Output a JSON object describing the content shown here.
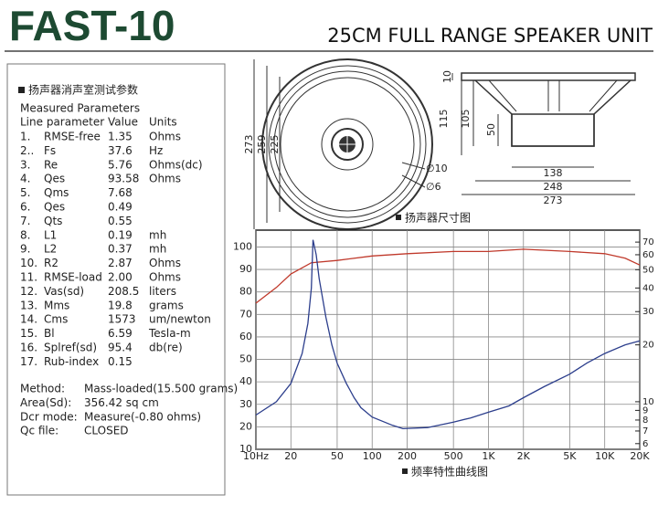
{
  "header": {
    "title": "FAST-10",
    "subtitle": "25CM FULL RANGE SPEAKER UNIT"
  },
  "params": {
    "heading": "扬声器消声室测试参数",
    "subheading": "Measured Parameters",
    "columns": [
      "Line parameter",
      "Value",
      "Units"
    ],
    "rows": [
      [
        "1.",
        "RMSE-free",
        "1.35",
        "Ohms"
      ],
      [
        "2..",
        "Fs",
        "37.6",
        "Hz"
      ],
      [
        "3.",
        "Re",
        "5.76",
        "Ohms(dc)"
      ],
      [
        "4.",
        "Qes",
        "93.58",
        "Ohms"
      ],
      [
        "5.",
        "Qms",
        "7.68",
        ""
      ],
      [
        "6.",
        "Qes",
        "0.49",
        ""
      ],
      [
        "7.",
        "Qts",
        "0.55",
        ""
      ],
      [
        "8.",
        "L1",
        "0.19",
        "mh"
      ],
      [
        "9.",
        "L2",
        "0.37",
        "mh"
      ],
      [
        "10.",
        "R2",
        "2.87",
        "Ohms"
      ],
      [
        "11.",
        "RMSE-load",
        "2.00",
        "Ohms"
      ],
      [
        "12.",
        "Vas(sd)",
        "208.5",
        "liters"
      ],
      [
        "13.",
        "Mms",
        "19.8",
        "grams"
      ],
      [
        "14.",
        "Cms",
        "1573",
        "um/newton"
      ],
      [
        "15.",
        "Bl",
        "6.59",
        "Tesla-m"
      ],
      [
        "16.",
        "Splref(sd)",
        "95.4",
        "db(re)"
      ],
      [
        "17.",
        "Rub-index",
        "0.15",
        ""
      ]
    ],
    "notes": [
      [
        "Method:",
        "Mass-loaded(15.500 grams)"
      ],
      [
        "Area(Sd):",
        "356.42 sq cm"
      ],
      [
        "Dcr mode:",
        "Measure(-0.80 ohms)"
      ],
      [
        "Qc file:",
        "CLOSED"
      ]
    ]
  },
  "drawing": {
    "caption": "扬声器尺寸图",
    "front": {
      "d1": "273",
      "d2": "259",
      "d3": "225",
      "hole1": "∅10",
      "hole2": "∅6"
    },
    "side": {
      "h0": "10",
      "h1": "115",
      "h2": "105",
      "h3": "50",
      "w1": "138",
      "w2": "248",
      "w3": "273"
    }
  },
  "chart_data": {
    "type": "line",
    "caption": "频率特性曲线图",
    "xscale": "log",
    "xlim": [
      10,
      20000
    ],
    "xticks": [
      {
        "value": 10,
        "label": "10Hz"
      },
      20,
      50,
      100,
      200,
      500,
      {
        "value": 1000,
        "label": "1K"
      },
      {
        "value": 2000,
        "label": "2K"
      },
      {
        "value": 5000,
        "label": "5K"
      },
      {
        "value": 10000,
        "label": "10K"
      },
      {
        "value": 20000,
        "label": "20K"
      }
    ],
    "ylim": [
      10,
      107.5
    ],
    "yticks": [
      10,
      20,
      30,
      40,
      50,
      60,
      70,
      80,
      90,
      100
    ],
    "y2scale": "log",
    "y2lim": [
      5.6,
      81
    ],
    "y2ticks": [
      6,
      7,
      8,
      9,
      10,
      20,
      30,
      40,
      50,
      60,
      70
    ],
    "grid": true,
    "series": [
      {
        "color": "#c0392b",
        "x": [
          10,
          15,
          20,
          30,
          50,
          100,
          200,
          500,
          1000,
          2000,
          5000,
          10000,
          15000,
          20000
        ],
        "values": [
          75,
          82,
          88,
          93,
          94,
          96,
          97,
          98,
          98,
          99,
          98,
          97,
          95,
          92
        ]
      },
      {
        "color": "#2c3e8c",
        "axis": "y2",
        "x": [
          10,
          15,
          20,
          25,
          28,
          30,
          31,
          33,
          35,
          40,
          45,
          50,
          60,
          70,
          80,
          100,
          150,
          184,
          300,
          500,
          700,
          1000,
          1500,
          2000,
          3000,
          5000,
          7000,
          10000,
          15000,
          20000
        ],
        "values": [
          8.5,
          10,
          12.5,
          18,
          26,
          40,
          72,
          60,
          45,
          28,
          20,
          16,
          12.5,
          10.5,
          9.3,
          8.3,
          7.5,
          7.2,
          7.3,
          7.8,
          8.2,
          8.8,
          9.5,
          10.5,
          12,
          14,
          16,
          18,
          20,
          21
        ]
      }
    ]
  }
}
